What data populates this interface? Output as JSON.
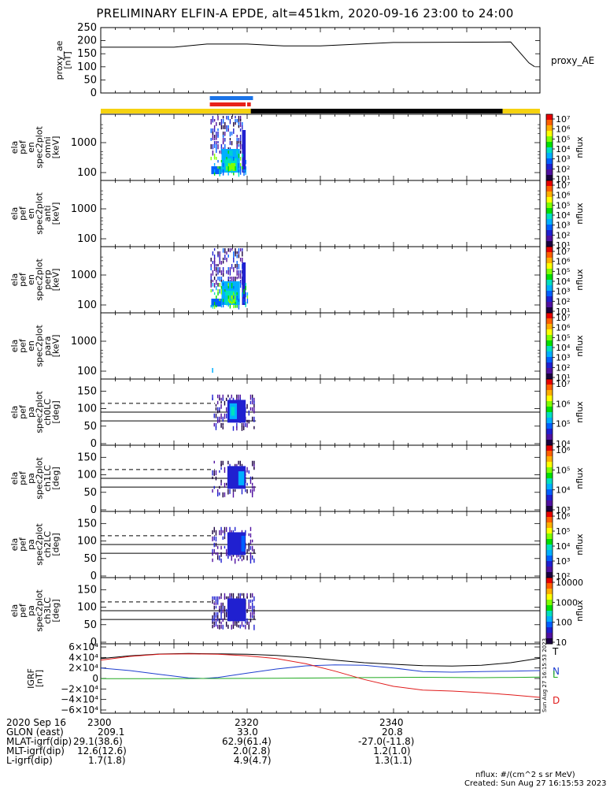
{
  "title": "PRELIMINARY ELFIN-A EPDE, alt=451km, 2020-09-16 23:00 to 24:00",
  "chart_data": {
    "type": "multi-panel spectrogram",
    "x_range_min": [
      0,
      60
    ],
    "x_ticks": [
      {
        "min": 0,
        "label": "2300"
      },
      {
        "min": 20,
        "label": "2320"
      },
      {
        "min": 40,
        "label": "2340"
      }
    ],
    "proxy_ae": {
      "ylabel_lines": [
        "proxy_ae",
        "[nT]"
      ],
      "ylim": [
        0,
        250
      ],
      "yticks": [
        "0",
        "50",
        "100",
        "150",
        "200",
        "250"
      ],
      "legend": "proxy_AE",
      "series": [
        {
          "t": 0,
          "v": 175
        },
        {
          "t": 10,
          "v": 175
        },
        {
          "t": 14.5,
          "v": 187
        },
        {
          "t": 20,
          "v": 187
        },
        {
          "t": 25,
          "v": 180
        },
        {
          "t": 30,
          "v": 180
        },
        {
          "t": 40,
          "v": 193
        },
        {
          "t": 56,
          "v": 195
        },
        {
          "t": 58.5,
          "v": 115
        },
        {
          "t": 59.3,
          "v": 100
        }
      ]
    },
    "status_bars": [
      {
        "name": "blue",
        "color": "#1a73e8",
        "segments": [
          [
            14.9,
            20.8
          ]
        ]
      },
      {
        "name": "red",
        "color": "#e8221a",
        "segments": [
          [
            14.9,
            19.8
          ],
          [
            20.0,
            20.5
          ]
        ]
      },
      {
        "name": "yellow-black",
        "segments": [
          {
            "range": [
              0,
              20.5
            ],
            "color": "#f5d210"
          },
          {
            "range": [
              20.5,
              54.9
            ],
            "color": "#000000"
          },
          {
            "range": [
              54.9,
              60
            ],
            "color": "#f5d210"
          }
        ]
      }
    ],
    "energy_panels": [
      {
        "ylabel_lines": [
          "ela",
          "pef",
          "en",
          "spec2plot",
          "omni",
          "[keV]"
        ],
        "yticks": [
          "100",
          "1000"
        ],
        "cbar_ticks": [
          "10⁷",
          "10⁶",
          "10⁵",
          "10⁴",
          "10³",
          "10²",
          "10¹"
        ],
        "cbar_label": "nflux",
        "activity": "strong"
      },
      {
        "ylabel_lines": [
          "ela",
          "pef",
          "en",
          "spec2plot",
          "anti",
          "[keV]"
        ],
        "yticks": [
          "100",
          "1000"
        ],
        "cbar_ticks": [
          "10⁷",
          "10⁶",
          "10⁵",
          "10⁴",
          "10³",
          "10²",
          "10¹"
        ],
        "cbar_label": "nflux",
        "activity": "none"
      },
      {
        "ylabel_lines": [
          "ela",
          "pef",
          "en",
          "spec2plot",
          "perp",
          "[keV]"
        ],
        "yticks": [
          "100",
          "1000"
        ],
        "cbar_ticks": [
          "10⁷",
          "10⁶",
          "10⁵",
          "10⁴",
          "10³",
          "10²",
          "10¹"
        ],
        "cbar_label": "nflux",
        "activity": "strong"
      },
      {
        "ylabel_lines": [
          "ela",
          "pef",
          "en",
          "spec2plot",
          "para",
          "[keV]"
        ],
        "yticks": [
          "100",
          "1000"
        ],
        "cbar_ticks": [
          "10⁷",
          "10⁶",
          "10⁵",
          "10⁴",
          "10³",
          "10²",
          "10¹"
        ],
        "cbar_label": "nflux",
        "activity": "trace"
      }
    ],
    "pitch_panels": [
      {
        "ylabel_lines": [
          "ela",
          "pef",
          "pa",
          "spec2plot",
          "ch0LC",
          "[deg]"
        ],
        "yticks": [
          "0",
          "50",
          "100",
          "150"
        ],
        "cbar_ticks": [
          "10⁷",
          "10⁶",
          "10⁵",
          "10⁴"
        ],
        "cbar_label": "nflux"
      },
      {
        "ylabel_lines": [
          "ela",
          "pef",
          "pa",
          "spec2plot",
          "ch1LC",
          "[deg]"
        ],
        "yticks": [
          "0",
          "50",
          "100",
          "150"
        ],
        "cbar_ticks": [
          "10⁶",
          "10⁵",
          "10⁴",
          "10³"
        ],
        "cbar_label": "nflux"
      },
      {
        "ylabel_lines": [
          "ela",
          "pef",
          "pa",
          "spec2plot",
          "ch2LC",
          "[deg]"
        ],
        "yticks": [
          "0",
          "50",
          "100",
          "150"
        ],
        "cbar_ticks": [
          "10⁶",
          "10⁵",
          "10⁴",
          "10³",
          "10²"
        ],
        "cbar_label": "nflux"
      },
      {
        "ylabel_lines": [
          "ela",
          "pef",
          "pa",
          "spec2plot",
          "ch3LC",
          "[deg]"
        ],
        "yticks": [
          "0",
          "50",
          "100",
          "150"
        ],
        "cbar_ticks": [
          "10000",
          "1000",
          "100",
          "10"
        ],
        "cbar_label": "nflux"
      }
    ],
    "igrf": {
      "ylabel_lines": [
        "IGRF",
        "[nT]"
      ],
      "ylim": [
        -60000,
        60000
      ],
      "yticks": [
        "−6×10⁴",
        "−4×10⁴",
        "−2×10⁴",
        "0",
        "2×10⁴",
        "4×10⁴",
        "6×10⁴"
      ],
      "series": [
        {
          "name": "T",
          "color": "#000000",
          "t": [
            0,
            4,
            8,
            12,
            16,
            20,
            24,
            28,
            32,
            36,
            40,
            44,
            48,
            52,
            56,
            60
          ],
          "v": [
            38000,
            43000,
            46500,
            47500,
            47000,
            46000,
            44000,
            40000,
            35000,
            30000,
            27000,
            24500,
            23500,
            25000,
            30000,
            38500
          ]
        },
        {
          "name": "N",
          "color": "#1f3fcf",
          "t": [
            0,
            4,
            8,
            12,
            14,
            16,
            20,
            24,
            28,
            32,
            36,
            40,
            44,
            48,
            52,
            56,
            60
          ],
          "v": [
            20000,
            15000,
            8000,
            1000,
            0,
            2000,
            10000,
            18000,
            24000,
            26000,
            25000,
            20000,
            13000,
            12000,
            13000,
            14000,
            15000
          ]
        },
        {
          "name": "L",
          "color": "#22aa22",
          "t": [
            0,
            4,
            8,
            12,
            16,
            20,
            24,
            28,
            32,
            36,
            40,
            44,
            48,
            52,
            56,
            60
          ],
          "v": [
            -500,
            -400,
            -300,
            -200,
            0,
            200,
            400,
            800,
            1200,
            1600,
            2000,
            2200,
            2000,
            1500,
            2000,
            2500
          ]
        },
        {
          "name": "D",
          "color": "#e01b1b",
          "t": [
            0,
            4,
            8,
            12,
            16,
            20,
            24,
            28,
            32,
            36,
            40,
            44,
            48,
            52,
            56,
            60
          ],
          "v": [
            35000,
            42000,
            46000,
            47000,
            46000,
            43000,
            38000,
            28000,
            14000,
            -2000,
            -15000,
            -22000,
            -24000,
            -27000,
            -31000,
            -36000
          ]
        }
      ]
    }
  },
  "footer": {
    "rows": [
      {
        "label": "2020 Sep 16",
        "values": [
          "2300",
          "2320",
          "2340"
        ]
      },
      {
        "label": "GLON (east)",
        "values": [
          "209.1",
          "33.0",
          "20.8"
        ]
      },
      {
        "label": "MLAT-igrf(dip)",
        "values": [
          "29.1(38.6)",
          "62.9(61.4)",
          "-27.0(-11.8)"
        ]
      },
      {
        "label": "MLT-igrf(dip)",
        "values": [
          "12.6(12.6)",
          "2.0(2.8)",
          "1.2(1.0)"
        ]
      },
      {
        "label": "L-igrf(dip)",
        "values": [
          "1.7(1.8)",
          "4.9(4.7)",
          "1.3(1.1)"
        ]
      }
    ],
    "units_note": "nflux: #/(cm^2 s sr MeV)",
    "created": "Created: Sun Aug 27 16:15:53 2023",
    "side_stamp": "Sun Aug 27 16:15:53 2023"
  }
}
